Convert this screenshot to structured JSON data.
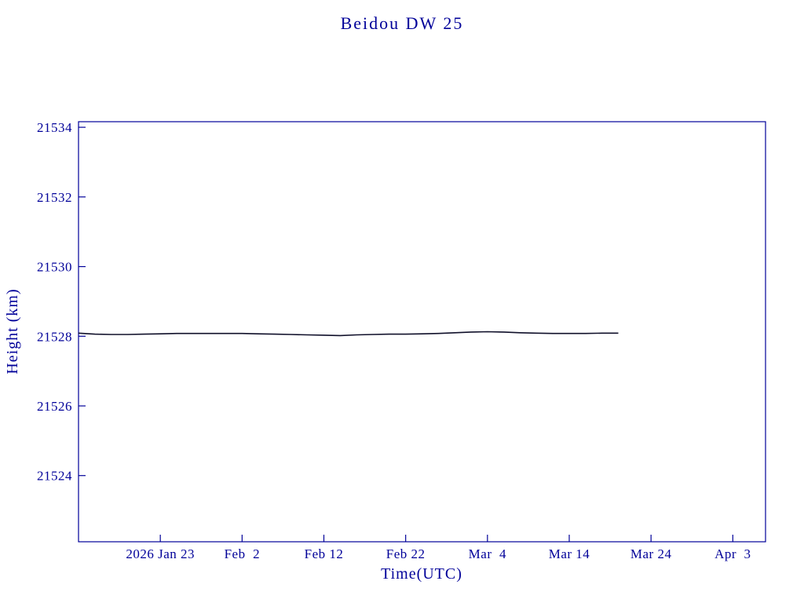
{
  "page": {
    "background": "#ffffff"
  },
  "chart_data": {
    "type": "line",
    "title": "Beidou DW 25",
    "xlabel": "Time(UTC)",
    "ylabel": "Height (km)",
    "axis_color": "#000099",
    "line_color": "#10102a",
    "grid": false,
    "legend": "none",
    "x_unit": "days from left edge of plot (ticks every 10 days)",
    "xlim": [
      0,
      84
    ],
    "ylim": [
      21522.1,
      21534.16
    ],
    "y_ticks": [
      21524,
      21526,
      21528,
      21530,
      21532,
      21534
    ],
    "x_ticks": [
      {
        "pos": 10,
        "label": "2026 Jan 23"
      },
      {
        "pos": 20,
        "label": "Feb  2"
      },
      {
        "pos": 30,
        "label": "Feb 12"
      },
      {
        "pos": 40,
        "label": "Feb 22"
      },
      {
        "pos": 50,
        "label": "Mar  4"
      },
      {
        "pos": 60,
        "label": "Mar 14"
      },
      {
        "pos": 70,
        "label": "Mar 24"
      },
      {
        "pos": 80,
        "label": "Apr  3"
      }
    ],
    "series": [
      {
        "name": "Beidou DW 25 height",
        "x": [
          0,
          2,
          4,
          6,
          8,
          10,
          12,
          14,
          16,
          18,
          20,
          22,
          24,
          26,
          28,
          30,
          32,
          34,
          36,
          38,
          40,
          42,
          44,
          46,
          48,
          50,
          52,
          54,
          56,
          58,
          60,
          62,
          64,
          66
        ],
        "y": [
          21528.09,
          21528.06,
          21528.05,
          21528.05,
          21528.06,
          21528.07,
          21528.08,
          21528.08,
          21528.08,
          21528.08,
          21528.08,
          21528.07,
          21528.06,
          21528.05,
          21528.04,
          21528.03,
          21528.02,
          21528.04,
          21528.05,
          21528.06,
          21528.06,
          21528.07,
          21528.08,
          21528.1,
          21528.12,
          21528.13,
          21528.12,
          21528.1,
          21528.09,
          21528.08,
          21528.08,
          21528.08,
          21528.09,
          21528.09
        ]
      }
    ]
  }
}
